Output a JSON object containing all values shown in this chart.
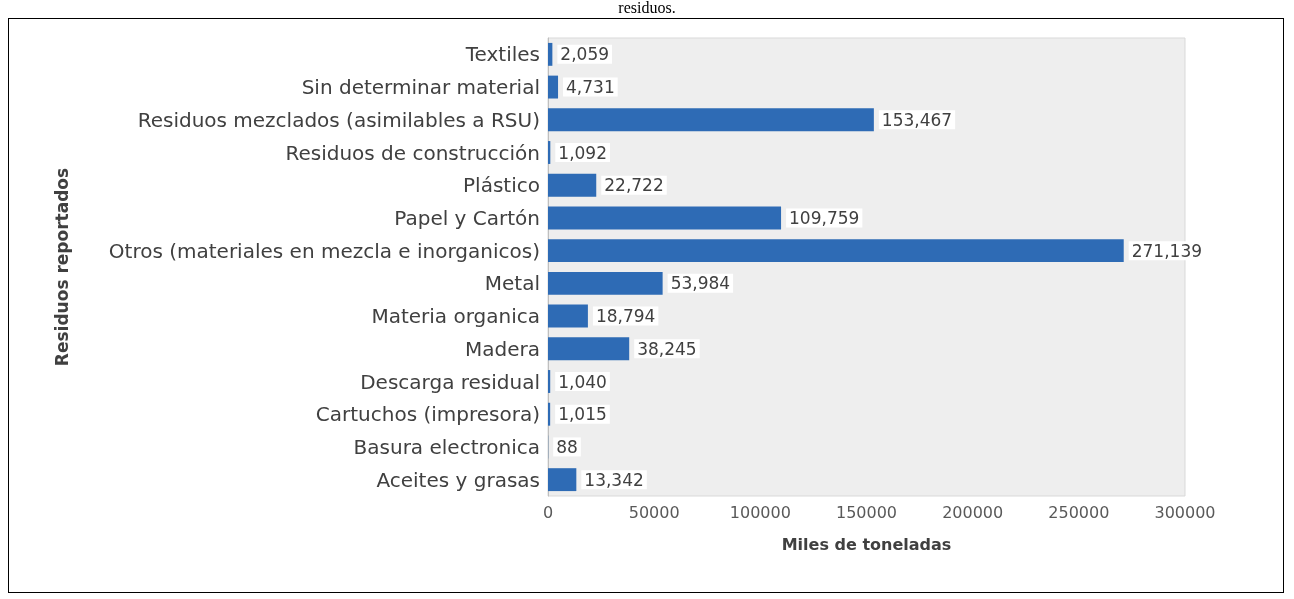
{
  "chart_data": {
    "type": "bar",
    "orientation": "horizontal",
    "title": "residuos.",
    "xlabel": "Miles de toneladas",
    "ylabel": "Residuos reportados",
    "categories": [
      "Textiles",
      "Sin determinar material",
      "Residuos mezclados (asimilables a RSU)",
      "Residuos de construcción",
      "Plástico",
      "Papel y Cartón",
      "Otros (materiales en mezcla e inorganicos)",
      "Metal",
      "Materia organica",
      "Madera",
      "Descarga residual",
      "Cartuchos (impresora)",
      "Basura electronica",
      "Aceites y grasas"
    ],
    "values": [
      2059,
      4731,
      153467,
      1092,
      22722,
      109759,
      271139,
      53984,
      18794,
      38245,
      1040,
      1015,
      88,
      13342
    ],
    "value_labels": [
      "2,059",
      "4,731",
      "153,467",
      "1,092",
      "22,722",
      "109,759",
      "271,139",
      "53,984",
      "18,794",
      "38,245",
      "1,040",
      "1,015",
      "88",
      "13,342"
    ],
    "color": "#2e6bb5",
    "xlim": [
      0,
      300000
    ],
    "xticks": [
      0,
      50000,
      100000,
      150000,
      200000,
      250000,
      300000
    ],
    "grid": false
  }
}
